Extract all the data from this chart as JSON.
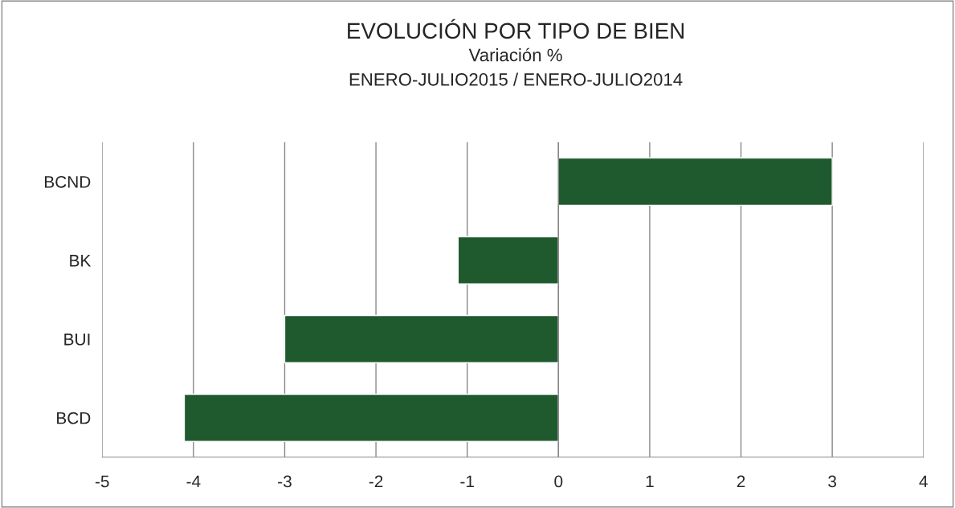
{
  "chart_data": {
    "type": "bar",
    "orientation": "horizontal",
    "title": "EVOLUCIÓN POR TIPO DE BIEN",
    "subtitle": "Variación %\nENERO-JULIO2015 / ENERO-JULIO2014",
    "categories": [
      "BCND",
      "BK",
      "BUI",
      "BCD"
    ],
    "values": [
      3.0,
      -1.1,
      -3.0,
      -4.1
    ],
    "color": "#1f5a2e",
    "xlim": [
      -5,
      4
    ],
    "xticks": [
      -5,
      -4,
      -3,
      -2,
      -1,
      0,
      1,
      2,
      3,
      4
    ],
    "grid": "x",
    "legend": false
  }
}
